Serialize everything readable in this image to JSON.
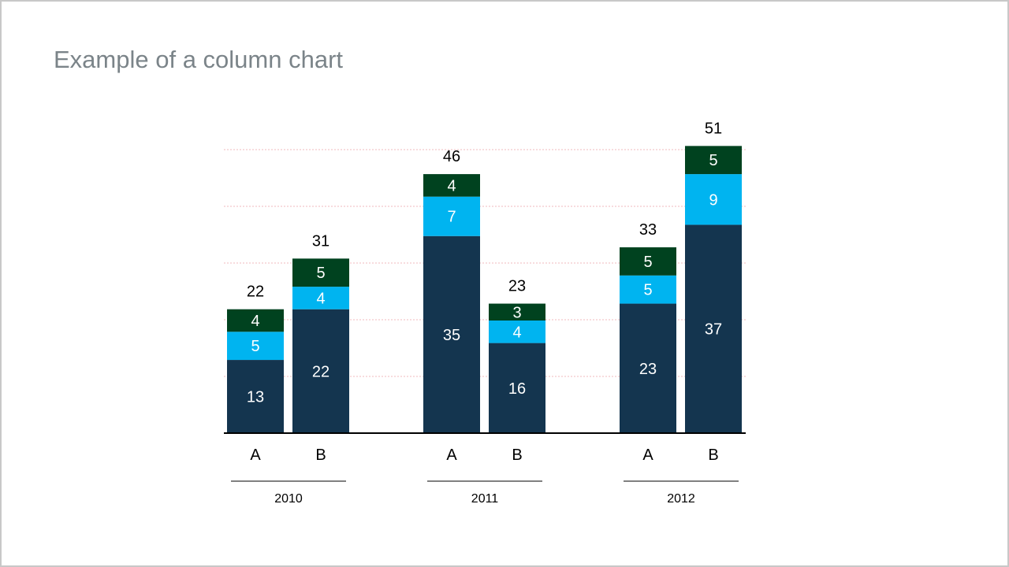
{
  "page": {
    "title": "Example of a column chart"
  },
  "chart_data": {
    "type": "bar",
    "stacked": true,
    "title": "Example of a column chart",
    "xlabel": "",
    "ylabel": "",
    "ylim": [
      0,
      51
    ],
    "grid": true,
    "groups": [
      {
        "label": "2010",
        "categories": [
          "A",
          "B"
        ]
      },
      {
        "label": "2011",
        "categories": [
          "A",
          "B"
        ]
      },
      {
        "label": "2012",
        "categories": [
          "A",
          "B"
        ]
      }
    ],
    "series": [
      {
        "color": "#14354f",
        "values": [
          13,
          22,
          35,
          16,
          23,
          37
        ]
      },
      {
        "color": "#00b4f0",
        "values": [
          5,
          4,
          7,
          4,
          5,
          9
        ]
      },
      {
        "color": "#00421f",
        "values": [
          4,
          5,
          4,
          3,
          5,
          5
        ]
      }
    ],
    "totals": [
      22,
      31,
      46,
      23,
      33,
      51
    ],
    "colors": {
      "grid": "#f2b8bd",
      "axis": "#000000",
      "label_inside": "#ffffff",
      "label_outside": "#000000"
    }
  }
}
